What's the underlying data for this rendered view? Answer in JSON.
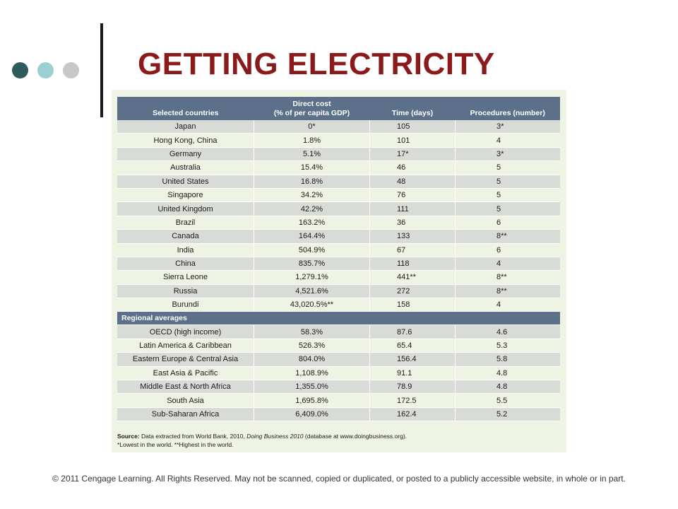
{
  "slide": {
    "title": "GETTING ELECTRICITY",
    "footer": "© 2011 Cengage Learning. All Rights Reserved. May not be scanned, copied or duplicated, or posted to a publicly accessible website, in whole or in part.",
    "dot_colors": [
      "#2e5c5c",
      "#9ccfcf",
      "#c8c8c8"
    ]
  },
  "table": {
    "headers": {
      "col1": "Selected countries",
      "col2_line1": "Direct cost",
      "col2_line2": "(% of per capita GDP)",
      "col3": "Time (days)",
      "col4": "Procedures (number)"
    },
    "countries": [
      [
        "Japan",
        "0*",
        "105",
        "3*"
      ],
      [
        "Hong Kong, China",
        "1.8%",
        "101",
        "4"
      ],
      [
        "Germany",
        "5.1%",
        "17*",
        "3*"
      ],
      [
        "Australia",
        "15.4%",
        "46",
        "5"
      ],
      [
        "United States",
        "16.8%",
        "48",
        "5"
      ],
      [
        "Singapore",
        "34.2%",
        "76",
        "5"
      ],
      [
        "United Kingdom",
        "42.2%",
        "111",
        "5"
      ],
      [
        "Brazil",
        "163.2%",
        "36",
        "6"
      ],
      [
        "Canada",
        "164.4%",
        "133",
        "8**"
      ],
      [
        "India",
        "504.9%",
        "67",
        "6"
      ],
      [
        "China",
        "835.7%",
        "118",
        "4"
      ],
      [
        "Sierra Leone",
        "1,279.1%",
        "441**",
        "8**"
      ],
      [
        "Russia",
        "4,521.6%",
        "272",
        "8**"
      ],
      [
        "Burundi",
        "43,020.5%**",
        "158",
        "4"
      ]
    ],
    "section_label": "Regional averages",
    "regions": [
      [
        "OECD (high income)",
        "58.3%",
        "87.6",
        "4.6"
      ],
      [
        "Latin America & Caribbean",
        "526.3%",
        "65.4",
        "5.3"
      ],
      [
        "Eastern Europe & Central Asia",
        "804.0%",
        "156.4",
        "5.8"
      ],
      [
        "East Asia & Pacific",
        "1,108.9%",
        "91.1",
        "4.8"
      ],
      [
        "Middle East & North Africa",
        "1,355.0%",
        "78.9",
        "4.8"
      ],
      [
        "South Asia",
        "1,695.8%",
        "172.5",
        "5.5"
      ],
      [
        "Sub-Saharan Africa",
        "6,409.0%",
        "162.4",
        "5.2"
      ]
    ],
    "source_label": "Source:",
    "source_text": "Data extracted from World Bank, 2010,",
    "source_pub": "Doing Business 2010",
    "source_db": "(database at www.doingbusiness.org).",
    "note": "*Lowest in the world. **Highest in the world."
  }
}
